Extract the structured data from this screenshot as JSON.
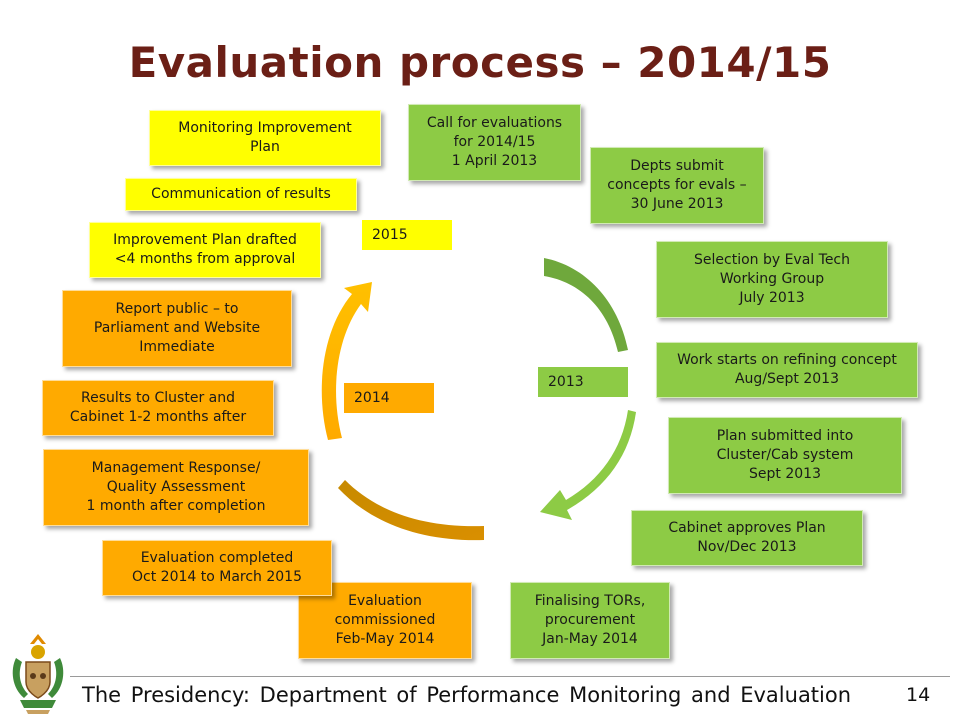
{
  "title": "Evaluation process – 2014/15",
  "colors": {
    "title": "#6b1f16",
    "green": "#8dcb45",
    "yellow": "#ffff00",
    "orange": "#ffaa00"
  },
  "year_labels": {
    "y2015": "2015",
    "y2014": "2014",
    "y2013": "2013"
  },
  "steps": {
    "call": "Call for evaluations\nfor 2014/15\n1 April 2013",
    "concepts": "Depts submit\nconcepts for evals –\n30 June 2013",
    "selection": "Selection by Eval Tech\nWorking Group\nJuly 2013",
    "refining": "Work starts on refining concept\nAug/Sept 2013",
    "plan_submitted": "Plan submitted into\nCluster/Cab system\nSept 2013",
    "cabinet_approves": "Cabinet approves Plan\nNov/Dec 2013",
    "tors": "Finalising TORs,\nprocurement\nJan-May 2014",
    "commissioned": "Evaluation\ncommissioned\nFeb-May 2014",
    "completed": "Evaluation completed\nOct 2014 to March 2015",
    "management_response": "Management Response/\nQuality Assessment\n1 month after completion",
    "results_cluster": "Results to Cluster and\nCabinet 1-2 months after",
    "report_public": "Report public – to\nParliament and Website\nImmediate",
    "improvement_plan": "Improvement Plan drafted\n<4 months from approval",
    "communication": "Communication of results",
    "monitoring": "Monitoring Improvement\nPlan"
  },
  "footer": {
    "text": "The Presidency: Department of Performance Monitoring and Evaluation",
    "page_number": "14"
  }
}
